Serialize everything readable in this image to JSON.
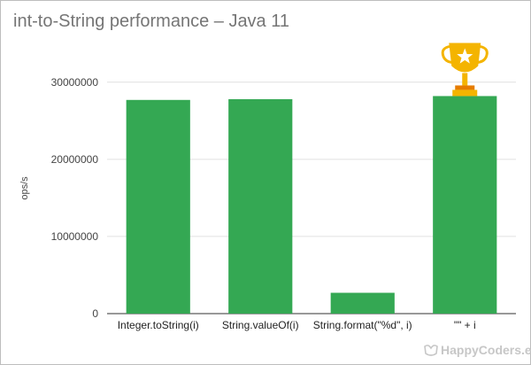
{
  "chart_data": {
    "type": "bar",
    "title": "int-to-String performance – Java 11",
    "xlabel": "",
    "ylabel": "ops/s",
    "categories": [
      "Integer.toString(i)",
      "String.valueOf(i)",
      "String.format(\"%d\", i)",
      "\"\" + i"
    ],
    "values": [
      27700000,
      27800000,
      2700000,
      28200000
    ],
    "yticks": [
      0,
      10000000,
      20000000,
      30000000
    ],
    "ylim": [
      0,
      32500000
    ],
    "grid": true,
    "bar_color": "#34a853",
    "winner_category": "\"\" + i"
  },
  "colors": {
    "bar": "#34a853",
    "trophy_gold": "#f4b400",
    "trophy_base": "#e67c00",
    "grid": "#e0e0e0",
    "title": "#757575"
  },
  "icons": {
    "trophy": "trophy-icon",
    "watermark_logo": "happycoders-logo-icon"
  },
  "watermark": {
    "text": "HappyCoders.e"
  }
}
